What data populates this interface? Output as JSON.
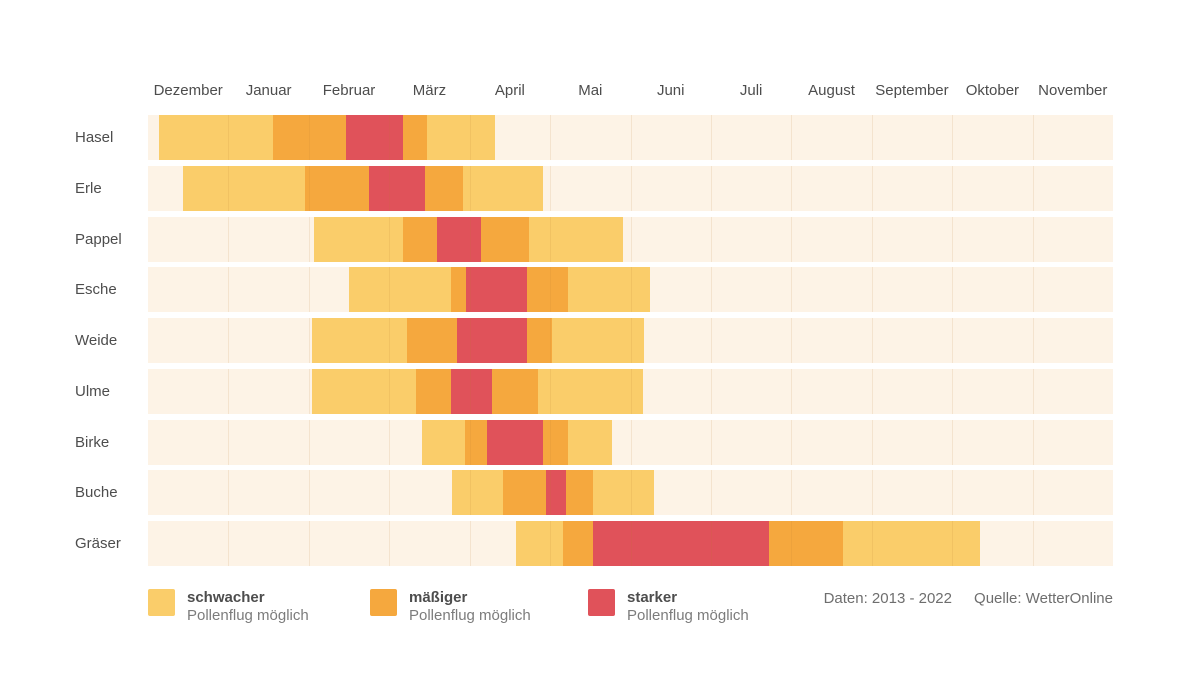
{
  "chart_data": {
    "type": "bar",
    "subtype": "pollen-calendar horizontal range (Gantt-style timeline)",
    "title": "",
    "months": [
      "Dezember",
      "Januar",
      "Februar",
      "März",
      "April",
      "Mai",
      "Juni",
      "Juli",
      "August",
      "September",
      "Oktober",
      "November"
    ],
    "x_range_months": [
      0,
      12
    ],
    "x_axis_note": "0 = start of Dezember, 12 = end of November; gridlines at each month boundary",
    "levels": [
      {
        "id": "schwach",
        "label": "schwacher Pollenflug möglich",
        "color": "#FACD6A"
      },
      {
        "id": "maessig",
        "label": "mäßiger Pollenflug möglich",
        "color": "#F5A83E"
      },
      {
        "id": "stark",
        "label": "starker Pollenflug möglich",
        "color": "#E0525A"
      }
    ],
    "rows": [
      {
        "label": "Hasel",
        "segments": [
          {
            "level": "schwach",
            "start": 0.14,
            "end": 1.55
          },
          {
            "level": "maessig",
            "start": 1.55,
            "end": 2.46
          },
          {
            "level": "stark",
            "start": 2.46,
            "end": 3.17
          },
          {
            "level": "maessig",
            "start": 3.17,
            "end": 3.47
          },
          {
            "level": "schwach",
            "start": 3.47,
            "end": 4.31
          }
        ]
      },
      {
        "label": "Erle",
        "segments": [
          {
            "level": "schwach",
            "start": 0.44,
            "end": 1.95
          },
          {
            "level": "maessig",
            "start": 1.95,
            "end": 2.75
          },
          {
            "level": "stark",
            "start": 2.75,
            "end": 3.44
          },
          {
            "level": "maessig",
            "start": 3.44,
            "end": 3.92
          },
          {
            "level": "schwach",
            "start": 3.92,
            "end": 4.91
          }
        ]
      },
      {
        "label": "Pappel",
        "segments": [
          {
            "level": "schwach",
            "start": 2.06,
            "end": 3.17
          },
          {
            "level": "maessig",
            "start": 3.17,
            "end": 3.59
          },
          {
            "level": "stark",
            "start": 3.59,
            "end": 4.14
          },
          {
            "level": "maessig",
            "start": 4.14,
            "end": 4.74
          },
          {
            "level": "schwach",
            "start": 4.74,
            "end": 5.91
          }
        ]
      },
      {
        "label": "Esche",
        "segments": [
          {
            "level": "schwach",
            "start": 2.5,
            "end": 3.77
          },
          {
            "level": "maessig",
            "start": 3.77,
            "end": 3.95
          },
          {
            "level": "stark",
            "start": 3.95,
            "end": 4.71
          },
          {
            "level": "maessig",
            "start": 4.71,
            "end": 5.22
          },
          {
            "level": "schwach",
            "start": 5.22,
            "end": 6.24
          }
        ]
      },
      {
        "label": "Weide",
        "segments": [
          {
            "level": "schwach",
            "start": 2.04,
            "end": 3.22
          },
          {
            "level": "maessig",
            "start": 3.22,
            "end": 3.84
          },
          {
            "level": "stark",
            "start": 3.84,
            "end": 4.71
          },
          {
            "level": "maessig",
            "start": 4.71,
            "end": 5.02
          },
          {
            "level": "schwach",
            "start": 5.02,
            "end": 6.17
          }
        ]
      },
      {
        "label": "Ulme",
        "segments": [
          {
            "level": "schwach",
            "start": 2.04,
            "end": 3.33
          },
          {
            "level": "maessig",
            "start": 3.33,
            "end": 3.77
          },
          {
            "level": "stark",
            "start": 3.77,
            "end": 4.28
          },
          {
            "level": "maessig",
            "start": 4.28,
            "end": 4.85
          },
          {
            "level": "schwach",
            "start": 4.85,
            "end": 6.16
          }
        ]
      },
      {
        "label": "Birke",
        "segments": [
          {
            "level": "schwach",
            "start": 3.41,
            "end": 3.94
          },
          {
            "level": "maessig",
            "start": 3.94,
            "end": 4.22
          },
          {
            "level": "stark",
            "start": 4.22,
            "end": 4.91
          },
          {
            "level": "maessig",
            "start": 4.91,
            "end": 5.22
          },
          {
            "level": "schwach",
            "start": 5.22,
            "end": 5.77
          }
        ]
      },
      {
        "label": "Buche",
        "segments": [
          {
            "level": "schwach",
            "start": 3.78,
            "end": 4.41
          },
          {
            "level": "maessig",
            "start": 4.41,
            "end": 4.95
          },
          {
            "level": "stark",
            "start": 4.95,
            "end": 5.2
          },
          {
            "level": "maessig",
            "start": 5.2,
            "end": 5.53
          },
          {
            "level": "schwach",
            "start": 5.53,
            "end": 6.29
          }
        ]
      },
      {
        "label": "Gräser",
        "segments": [
          {
            "level": "schwach",
            "start": 4.58,
            "end": 5.16
          },
          {
            "level": "maessig",
            "start": 5.16,
            "end": 5.53
          },
          {
            "level": "stark",
            "start": 5.53,
            "end": 7.72
          },
          {
            "level": "maessig",
            "start": 7.72,
            "end": 8.64
          },
          {
            "level": "schwach",
            "start": 8.64,
            "end": 10.35
          }
        ]
      }
    ],
    "colors": {
      "row_background": "#FDF3E6",
      "grid_line": "rgba(187,125,50,0.13)",
      "page_background": "#FFFFFF"
    },
    "legend_position": "bottom"
  },
  "legend": {
    "items": [
      {
        "bold": "schwacher",
        "sub": "Pollenflug möglich",
        "color": "#FACD6A"
      },
      {
        "bold": "mäßiger",
        "sub": "Pollenflug möglich",
        "color": "#F5A83E"
      },
      {
        "bold": "starker",
        "sub": "Pollenflug möglich",
        "color": "#E0525A"
      }
    ]
  },
  "footer": {
    "daten": "Daten: 2013 - 2022",
    "quelle": "Quelle: WetterOnline"
  }
}
